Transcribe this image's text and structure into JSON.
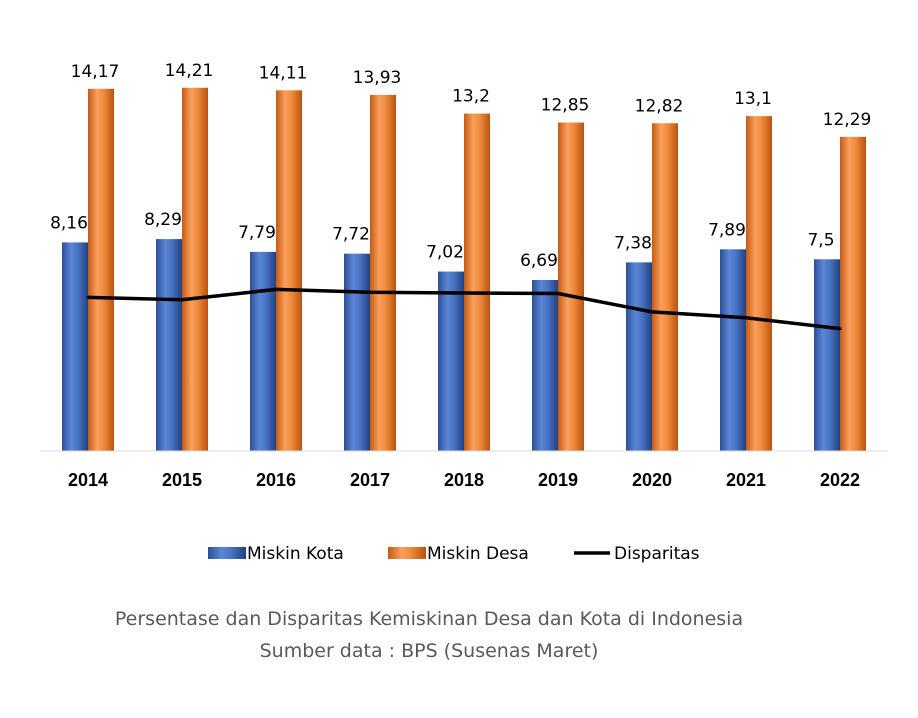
{
  "chart_data": {
    "type": "bar",
    "categories": [
      "2014",
      "2015",
      "2016",
      "2017",
      "2018",
      "2019",
      "2020",
      "2021",
      "2022"
    ],
    "series": [
      {
        "name": "Miskin Kota",
        "kind": "bar",
        "color": "#4472C4",
        "values": [
          8.16,
          8.29,
          7.79,
          7.72,
          7.02,
          6.69,
          7.38,
          7.89,
          7.5
        ],
        "labels": [
          "8,16",
          "8,29",
          "7,79",
          "7,72",
          "7,02",
          "6,69",
          "7,38",
          "7,89",
          "7,5"
        ]
      },
      {
        "name": "Miskin Desa",
        "kind": "bar",
        "color": "#ED7D31",
        "values": [
          14.17,
          14.21,
          14.11,
          13.93,
          13.2,
          12.85,
          12.82,
          13.1,
          12.29
        ],
        "labels": [
          "14,17",
          "14,21",
          "14,11",
          "13,93",
          "13,2",
          "12,85",
          "12,82",
          "13,1",
          "12,29"
        ]
      },
      {
        "name": "Disparitas",
        "kind": "line",
        "color": "#000000",
        "values": [
          6.01,
          5.92,
          6.32,
          6.21,
          6.18,
          6.16,
          5.44,
          5.21,
          4.79
        ]
      }
    ],
    "ylim": [
      0,
      16
    ],
    "grid": false,
    "legend": "bottom",
    "title": "Persentase dan Disparitas Kemiskinan Desa dan Kota di Indonesia",
    "subtitle": "Sumber data : BPS (Susenas Maret)"
  }
}
